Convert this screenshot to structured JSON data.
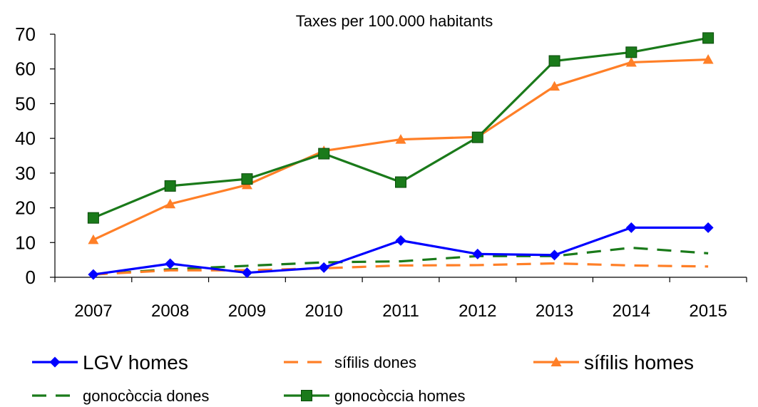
{
  "chart_data": {
    "type": "line",
    "title": "Taxes per 100.000 habitants",
    "xlabel": "",
    "ylabel": "",
    "categories": [
      "2007",
      "2008",
      "2009",
      "2010",
      "2011",
      "2012",
      "2013",
      "2014",
      "2015"
    ],
    "ylim": [
      0,
      70
    ],
    "yticks": [
      0,
      10,
      20,
      30,
      40,
      50,
      60,
      70
    ],
    "grid": false,
    "legend_position": "bottom",
    "series": [
      {
        "name": "LGV homes",
        "color": "#0000FF",
        "dash": "solid",
        "marker": "diamond",
        "values": [
          0.8,
          3.9,
          1.3,
          2.8,
          10.6,
          6.7,
          6.4,
          14.3,
          14.3
        ]
      },
      {
        "name": "sífilis dones",
        "color": "#FF7F27",
        "dash": "dashed",
        "marker": "none",
        "values": [
          0.8,
          2.0,
          2.0,
          2.6,
          3.4,
          3.5,
          4.0,
          3.4,
          3.1
        ]
      },
      {
        "name": "sífilis homes",
        "color": "#FF7F27",
        "dash": "solid",
        "marker": "triangle",
        "values": [
          10.8,
          21.1,
          26.6,
          36.4,
          39.7,
          40.4,
          55.0,
          61.9,
          62.7
        ]
      },
      {
        "name": "gonocòccia dones",
        "color": "#1A7A1A",
        "dash": "dashed",
        "marker": "none",
        "values": [
          0.8,
          2.3,
          3.3,
          4.3,
          4.6,
          6.1,
          6.1,
          8.5,
          6.9
        ]
      },
      {
        "name": "gonocòccia homes",
        "color": "#1A7A1A",
        "dash": "solid",
        "marker": "square",
        "values": [
          17.1,
          26.3,
          28.3,
          35.6,
          27.4,
          40.3,
          62.3,
          64.8,
          68.9
        ]
      }
    ]
  }
}
